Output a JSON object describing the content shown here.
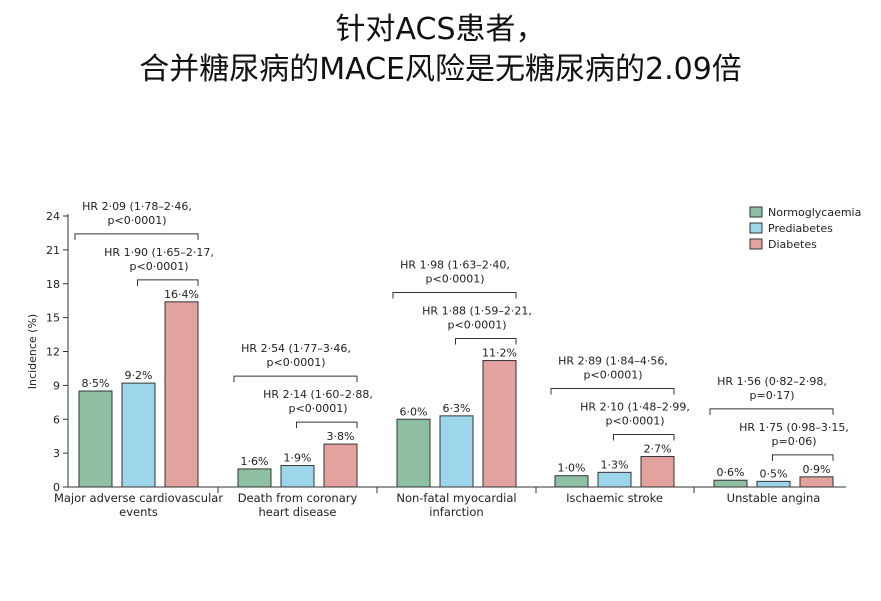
{
  "title": {
    "line1": "针对ACS患者，",
    "line2": "合并糖尿病的MACE风险是无糖尿病的2.09倍"
  },
  "chart_data": {
    "type": "bar",
    "ylabel": "Incidence (%)",
    "ylim": [
      0,
      24
    ],
    "yticks": [
      "0",
      "3",
      "6",
      "9",
      "12",
      "15",
      "18",
      "21",
      "24"
    ],
    "grid": false,
    "legend_position": "top-right",
    "categories": [
      [
        "Major adverse cardiovascular",
        "events"
      ],
      [
        "Death from coronary",
        "heart disease"
      ],
      [
        "Non-fatal myocardial",
        "infarction"
      ],
      [
        "Ischaemic stroke"
      ],
      [
        "Unstable angina"
      ]
    ],
    "series": [
      {
        "name": "Normoglycaemia",
        "color": "#8fbfa3",
        "values": [
          8.5,
          1.6,
          6.0,
          1.0,
          0.6
        ],
        "labels": [
          "8·5%",
          "1·6%",
          "6·0%",
          "1·0%",
          "0·6%"
        ]
      },
      {
        "name": "Prediabetes",
        "color": "#9dd6ea",
        "values": [
          9.2,
          1.9,
          6.3,
          1.3,
          0.5
        ],
        "labels": [
          "9·2%",
          "1·9%",
          "6·3%",
          "1·3%",
          "0·5%"
        ]
      },
      {
        "name": "Diabetes",
        "color": "#e2a29f",
        "values": [
          16.4,
          3.8,
          11.2,
          2.7,
          0.9
        ],
        "labels": [
          "16·4%",
          "3·8%",
          "11·2%",
          "2·7%",
          "0·9%"
        ]
      }
    ],
    "comparisons": [
      [
        {
          "vs": "Normoglycaemia-Diabetes",
          "lines": [
            "HR 2·09 (1·78–2·46,",
            "p<0·0001)"
          ]
        },
        {
          "vs": "Prediabetes-Diabetes",
          "lines": [
            "HR 1·90 (1·65–2·17,",
            "p<0·0001)"
          ]
        }
      ],
      [
        {
          "vs": "Normoglycaemia-Diabetes",
          "lines": [
            "HR 2·54 (1·77–3·46,",
            "p<0·0001)"
          ]
        },
        {
          "vs": "Prediabetes-Diabetes",
          "lines": [
            "HR 2·14 (1·60–2·88,",
            "p<0·0001)"
          ]
        }
      ],
      [
        {
          "vs": "Normoglycaemia-Diabetes",
          "lines": [
            "HR 1·98 (1·63–2·40,",
            "p<0·0001)"
          ]
        },
        {
          "vs": "Prediabetes-Diabetes",
          "lines": [
            "HR 1·88 (1·59–2·21,",
            "p<0·0001)"
          ]
        }
      ],
      [
        {
          "vs": "Normoglycaemia-Diabetes",
          "lines": [
            "HR 2·89 (1·84–4·56,",
            "p<0·0001)"
          ]
        },
        {
          "vs": "Prediabetes-Diabetes",
          "lines": [
            "HR 2·10 (1·48–2·99,",
            "p<0·0001)"
          ]
        }
      ],
      [
        {
          "vs": "Normoglycaemia-Diabetes",
          "lines": [
            "HR 1·56 (0·82–2·98,",
            "p=0·17)"
          ]
        },
        {
          "vs": "Prediabetes-Diabetes",
          "lines": [
            "HR 1·75 (0·98–3·15,",
            "p=0·06)"
          ]
        }
      ]
    ]
  }
}
